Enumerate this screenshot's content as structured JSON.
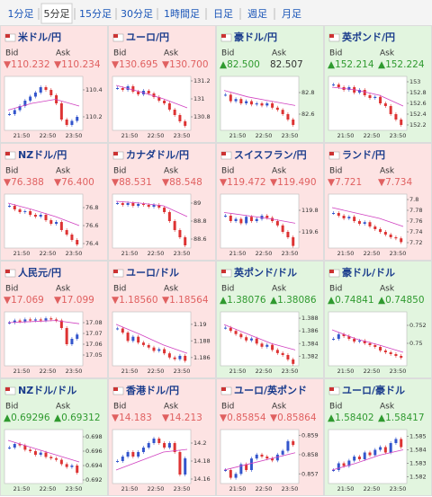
{
  "tabs": {
    "items": [
      "1分足",
      "5分足",
      "15分足",
      "30分足",
      "1時間足",
      "日足",
      "週足",
      "月足"
    ],
    "selected": 1
  },
  "time_labels": [
    "21:50",
    "22:50",
    "23:50"
  ],
  "tiles": [
    {
      "name": "米ドル/円",
      "trend": "down",
      "bid_label": "Bid",
      "ask_label": "Ask",
      "bid": "▼110.232",
      "ask": "▼110.234",
      "ylim": [
        110.1,
        110.5
      ],
      "yticks": [
        110.2,
        110.4
      ],
      "closes": [
        110.22,
        110.25,
        110.28,
        110.32,
        110.35,
        110.38,
        110.42,
        110.4,
        110.36,
        110.3,
        110.18,
        110.14,
        110.17,
        110.2
      ],
      "ma": [
        110.25,
        110.3,
        110.33,
        110.28
      ]
    },
    {
      "name": "ユーロ/円",
      "trend": "down",
      "bid_label": "Bid",
      "ask_label": "Ask",
      "bid": "▼130.695",
      "ask": "▼130.700",
      "ylim": [
        130.65,
        131.25
      ],
      "yticks": [
        130.8,
        131,
        131.2
      ],
      "closes": [
        131.12,
        131.1,
        131.14,
        131.08,
        131.05,
        131.09,
        131.06,
        131.02,
        130.98,
        130.95,
        130.88,
        130.82,
        130.75,
        130.7
      ],
      "ma": [
        131.15,
        131.08,
        131,
        130.9
      ]
    },
    {
      "name": "豪ドル/円",
      "trend": "up",
      "bid_label": "Bid",
      "ask_label": "Ask",
      "bid": "▲82.500",
      "ask": "82.507",
      "ylim": [
        82.45,
        82.95
      ],
      "yticks": [
        82.6,
        82.8
      ],
      "closes": [
        82.78,
        82.72,
        82.74,
        82.7,
        82.72,
        82.69,
        82.7,
        82.68,
        82.7,
        82.66,
        82.64,
        82.6,
        82.55,
        82.5
      ],
      "ma": [
        82.82,
        82.76,
        82.72,
        82.68
      ]
    },
    {
      "name": "英ポンド/円",
      "trend": "up",
      "bid_label": "Bid",
      "ask_label": "Ask",
      "bid": "▲152.214",
      "ask": "▲152.224",
      "ylim": [
        152.1,
        153.1
      ],
      "yticks": [
        152.2,
        152.4,
        152.6,
        152.8,
        153
      ],
      "closes": [
        152.95,
        152.9,
        152.85,
        152.9,
        152.8,
        152.85,
        152.75,
        152.7,
        152.72,
        152.6,
        152.55,
        152.4,
        152.3,
        152.2
      ],
      "ma": [
        152.9,
        152.85,
        152.75,
        152.55
      ]
    },
    {
      "name": "NZドル/円",
      "trend": "down",
      "bid_label": "Bid",
      "ask_label": "Ask",
      "bid": "▼76.388",
      "ask": "▼76.400",
      "ylim": [
        76.35,
        76.95
      ],
      "yticks": [
        76.4,
        76.6,
        76.8
      ],
      "closes": [
        76.82,
        76.78,
        76.75,
        76.76,
        76.72,
        76.7,
        76.72,
        76.66,
        76.62,
        76.64,
        76.55,
        76.5,
        76.44,
        76.39
      ],
      "ma": [
        76.85,
        76.78,
        76.7,
        76.6
      ]
    },
    {
      "name": "カナダドル/円",
      "trend": "down",
      "bid_label": "Bid",
      "ask_label": "Ask",
      "bid": "▼88.531",
      "ask": "▼88.548",
      "ylim": [
        88.5,
        89.1
      ],
      "yticks": [
        88.6,
        88.8,
        89
      ],
      "closes": [
        89,
        88.98,
        89,
        88.97,
        88.99,
        88.98,
        88.96,
        88.98,
        88.95,
        88.9,
        88.8,
        88.7,
        88.62,
        88.53
      ],
      "ma": [
        89.02,
        89,
        88.97,
        88.85
      ]
    },
    {
      "name": "スイスフラン/円",
      "trend": "down",
      "bid_label": "Bid",
      "ask_label": "Ask",
      "bid": "▼119.472",
      "ask": "▼119.490",
      "ylim": [
        119.45,
        119.95
      ],
      "yticks": [
        119.6,
        119.8
      ],
      "closes": [
        119.75,
        119.7,
        119.72,
        119.68,
        119.74,
        119.7,
        119.72,
        119.75,
        119.73,
        119.7,
        119.66,
        119.6,
        119.55,
        119.47
      ],
      "ma": [
        119.78,
        119.75,
        119.72,
        119.68
      ]
    },
    {
      "name": "ランド/円",
      "trend": "down",
      "bid_label": "Bid",
      "ask_label": "Ask",
      "bid": "▼7.721",
      "ask": "▼7.734",
      "ylim": [
        7.71,
        7.81
      ],
      "yticks": [
        7.72,
        7.74,
        7.76,
        7.78,
        7.8
      ],
      "closes": [
        7.775,
        7.77,
        7.765,
        7.768,
        7.76,
        7.755,
        7.758,
        7.75,
        7.745,
        7.74,
        7.735,
        7.73,
        7.728,
        7.721
      ],
      "ma": [
        7.785,
        7.775,
        7.765,
        7.75
      ]
    },
    {
      "name": "人民元/円",
      "trend": "down",
      "bid_label": "Bid",
      "ask_label": "Ask",
      "bid": "▼17.069",
      "ask": "▼17.099",
      "ylim": [
        17.04,
        17.09
      ],
      "yticks": [
        17.05,
        17.06,
        17.07,
        17.08
      ],
      "closes": [
        17.08,
        17.082,
        17.081,
        17.083,
        17.082,
        17.083,
        17.082,
        17.084,
        17.083,
        17.082,
        17.075,
        17.06,
        17.065,
        17.069
      ],
      "ma": [
        17.08,
        17.081,
        17.082,
        17.079
      ]
    },
    {
      "name": "ユーロ/ドル",
      "trend": "down",
      "bid_label": "Bid",
      "ask_label": "Ask",
      "bid": "▼1.18560",
      "ask": "▼1.18564",
      "ylim": [
        1.185,
        1.1915
      ],
      "yticks": [
        1.186,
        1.188,
        1.19
      ],
      "closes": [
        1.1895,
        1.189,
        1.188,
        1.1885,
        1.1878,
        1.1875,
        1.1872,
        1.1868,
        1.187,
        1.1865,
        1.186,
        1.1858,
        1.1862,
        1.1856
      ],
      "ma": [
        1.19,
        1.1888,
        1.1875,
        1.1865
      ]
    },
    {
      "name": "英ポンド/ドル",
      "trend": "up",
      "bid_label": "Bid",
      "ask_label": "Ask",
      "bid": "▲1.38076",
      "ask": "▲1.38086",
      "ylim": [
        1.3805,
        1.389
      ],
      "yticks": [
        1.382,
        1.384,
        1.386,
        1.388
      ],
      "closes": [
        1.3865,
        1.386,
        1.3855,
        1.385,
        1.3845,
        1.3848,
        1.384,
        1.3835,
        1.3838,
        1.383,
        1.3825,
        1.3822,
        1.3815,
        1.3808
      ],
      "ma": [
        1.387,
        1.3855,
        1.384,
        1.383
      ]
    },
    {
      "name": "豪ドル/ドル",
      "trend": "up",
      "bid_label": "Bid",
      "ask_label": "Ask",
      "bid": "▲0.74841",
      "ask": "▲0.74850",
      "ylim": [
        0.7475,
        0.7535
      ],
      "yticks": [
        0.75,
        0.752
      ],
      "closes": [
        0.7505,
        0.751,
        0.7508,
        0.7505,
        0.7502,
        0.7503,
        0.75,
        0.7498,
        0.7496,
        0.7492,
        0.749,
        0.7488,
        0.7486,
        0.7484
      ],
      "ma": [
        0.7515,
        0.7505,
        0.7498,
        0.749
      ]
    },
    {
      "name": "NZドル/ドル",
      "trend": "up",
      "bid_label": "Bid",
      "ask_label": "Ask",
      "bid": "▲0.69296",
      "ask": "▲0.69312",
      "ylim": [
        0.6915,
        0.699
      ],
      "yticks": [
        0.692,
        0.694,
        0.696,
        0.698
      ],
      "closes": [
        0.6965,
        0.697,
        0.6968,
        0.6962,
        0.696,
        0.6955,
        0.6958,
        0.6952,
        0.695,
        0.6948,
        0.6942,
        0.6938,
        0.694,
        0.693
      ],
      "ma": [
        0.6975,
        0.6965,
        0.6955,
        0.6945
      ]
    },
    {
      "name": "香港ドル/円",
      "trend": "down",
      "bid_label": "Bid",
      "ask_label": "Ask",
      "bid": "▼14.183",
      "ask": "▼14.213",
      "ylim": [
        14.155,
        14.215
      ],
      "yticks": [
        14.16,
        14.18,
        14.2
      ],
      "closes": [
        14.18,
        14.185,
        14.19,
        14.185,
        14.19,
        14.195,
        14.2,
        14.205,
        14.2,
        14.195,
        14.2,
        14.19,
        14.165,
        14.183
      ],
      "ma": [
        14.17,
        14.18,
        14.19,
        14.193
      ]
    },
    {
      "name": "ユーロ/英ポンド",
      "trend": "down",
      "bid_label": "Bid",
      "ask_label": "Ask",
      "bid": "▼0.85854",
      "ask": "▼0.85864",
      "ylim": [
        0.8565,
        0.8593
      ],
      "yticks": [
        0.857,
        0.858,
        0.859
      ],
      "closes": [
        0.8572,
        0.8568,
        0.857,
        0.8575,
        0.8572,
        0.8578,
        0.858,
        0.8579,
        0.8578,
        0.8577,
        0.858,
        0.8582,
        0.8587,
        0.8585
      ],
      "ma": [
        0.8572,
        0.8575,
        0.8578,
        0.8581
      ]
    },
    {
      "name": "ユーロ/豪ドル",
      "trend": "up",
      "bid_label": "Bid",
      "ask_label": "Ask",
      "bid": "▲1.58402",
      "ask": "▲1.58417",
      "ylim": [
        1.5815,
        1.5855
      ],
      "yticks": [
        1.582,
        1.583,
        1.584,
        1.585
      ],
      "closes": [
        1.5825,
        1.583,
        1.5828,
        1.5832,
        1.5835,
        1.5833,
        1.5838,
        1.5836,
        1.584,
        1.5842,
        1.5838,
        1.5845,
        1.5848,
        1.5842
      ],
      "ma": [
        1.5825,
        1.583,
        1.5836,
        1.584
      ]
    }
  ]
}
